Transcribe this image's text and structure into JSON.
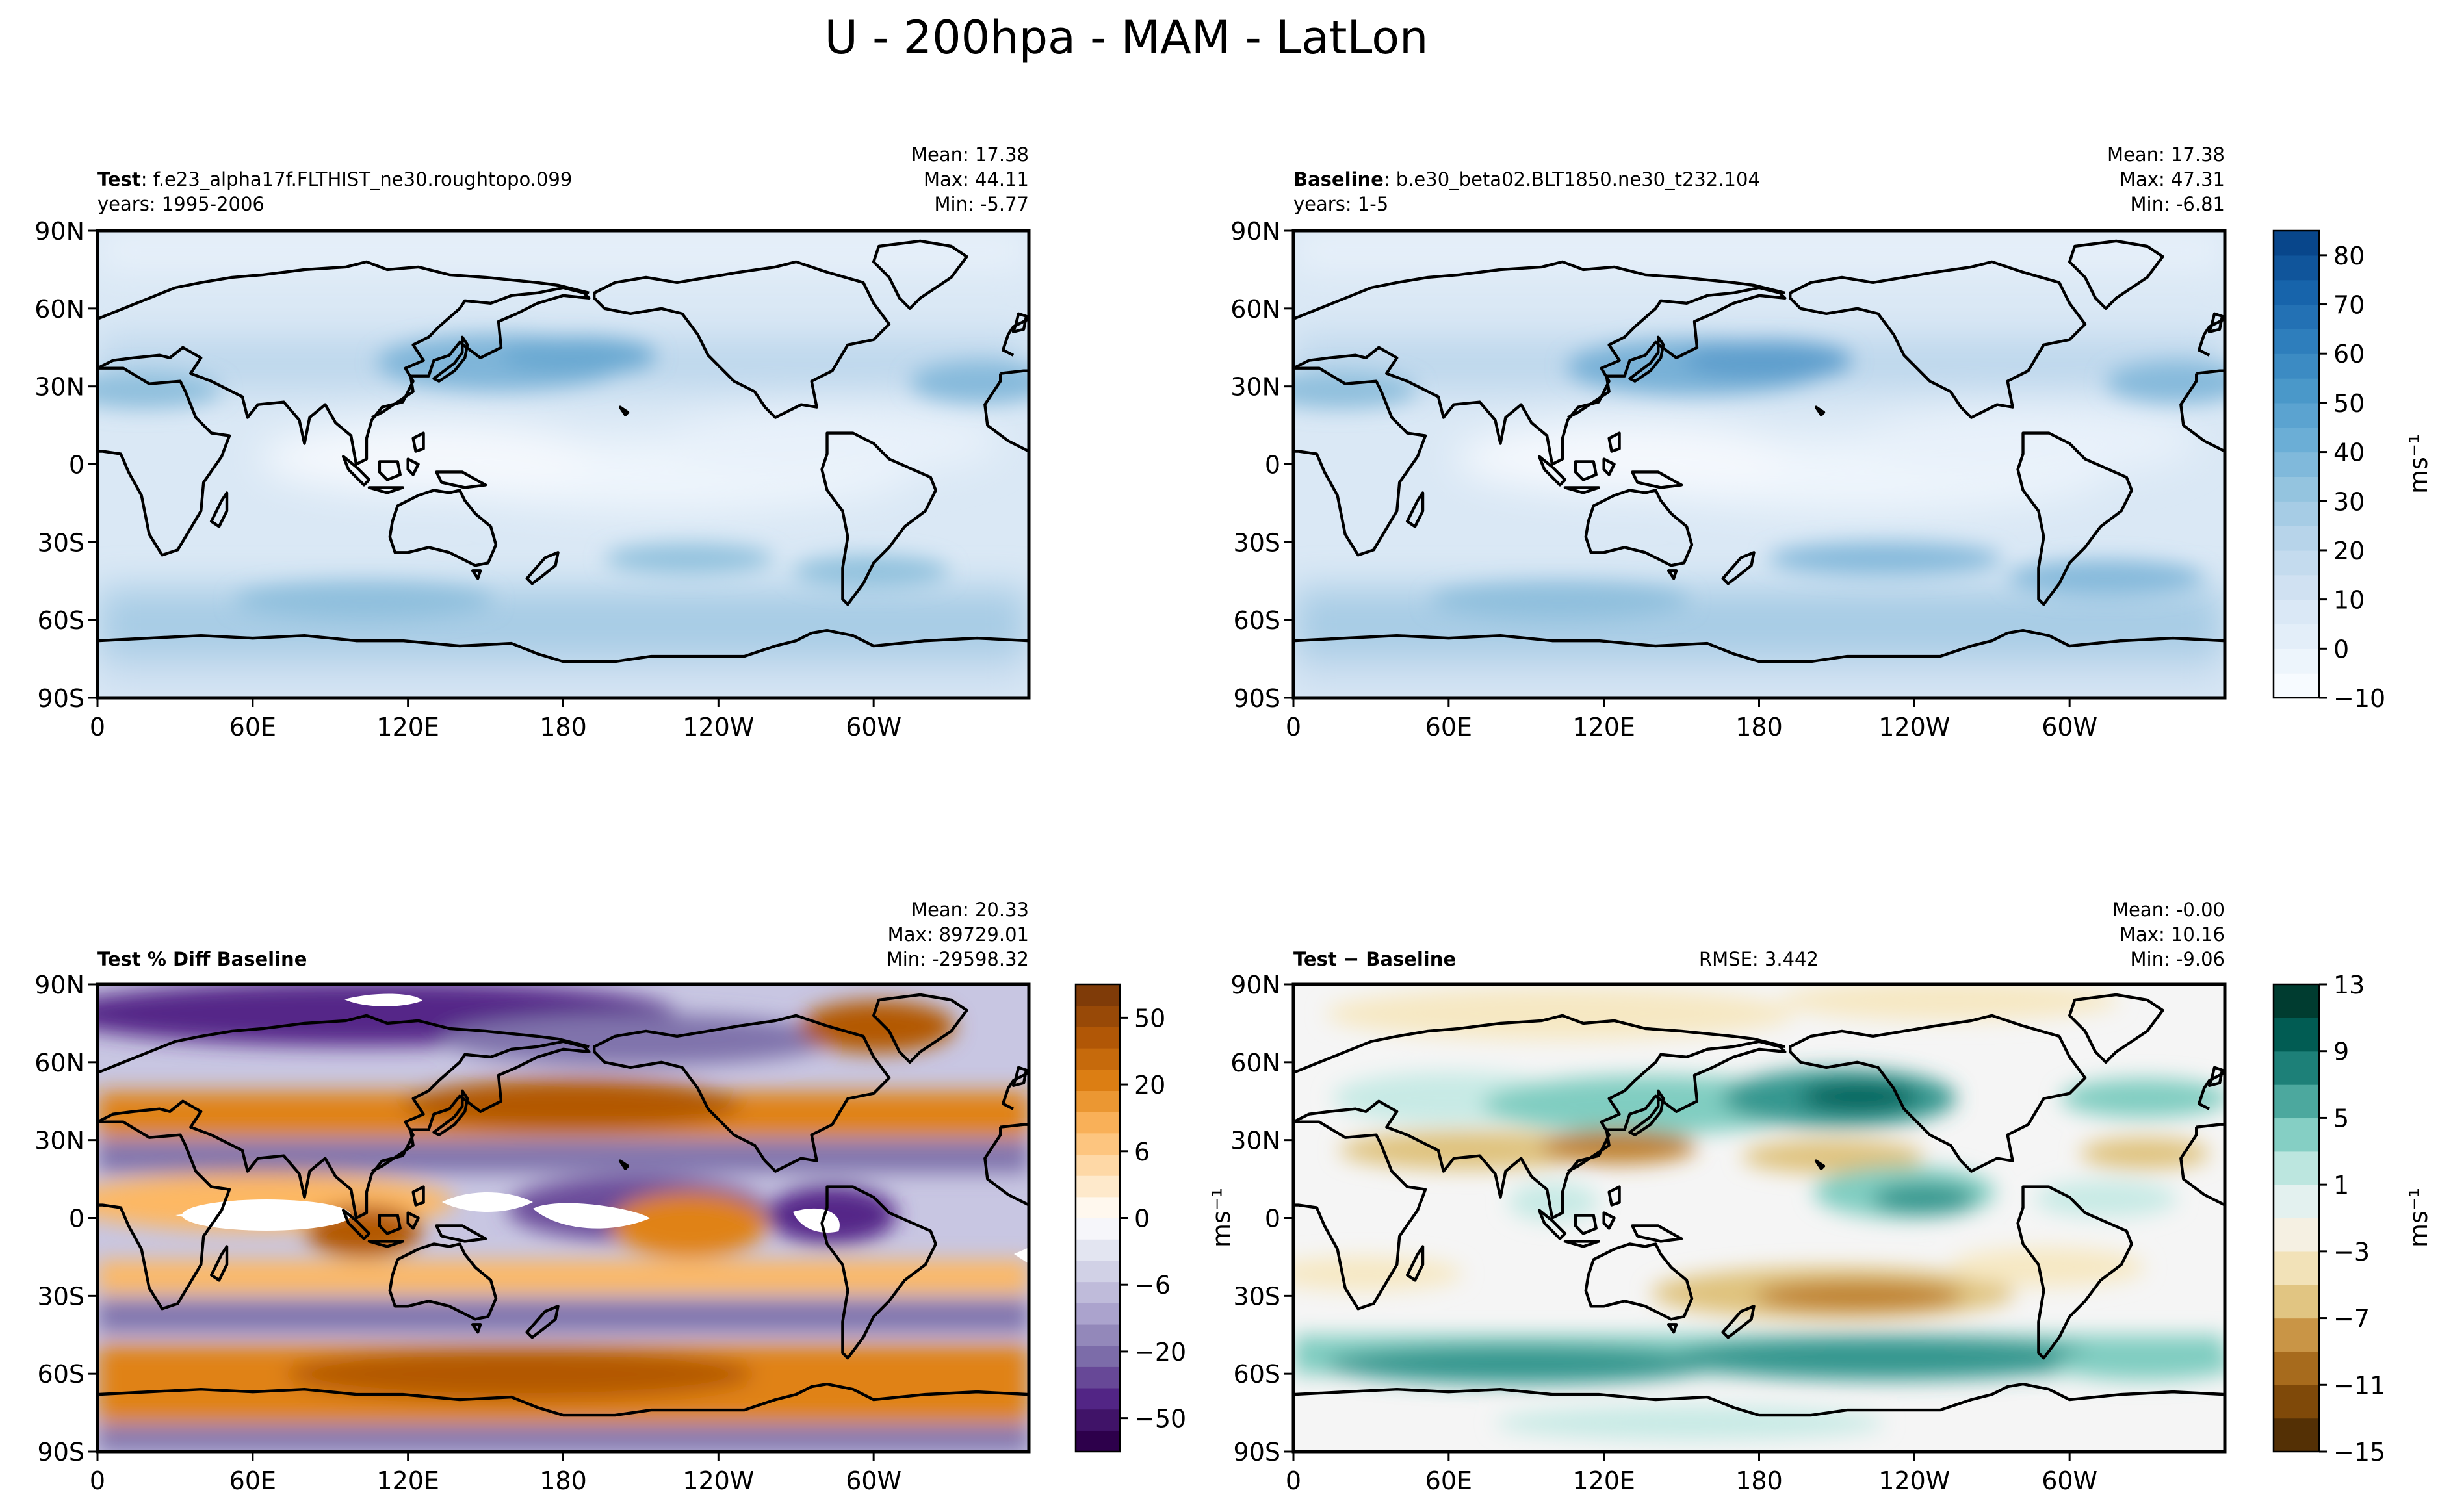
{
  "figure": {
    "title": "U - 200hpa - MAM - LatLon"
  },
  "colors": {
    "blues": [
      "#f7fbff",
      "#e3eef9",
      "#d0e1f2",
      "#b7d4ea",
      "#94c4df",
      "#6baed6",
      "#4a98c9",
      "#2e7ebc",
      "#1764ab",
      "#08468b"
    ],
    "purple_orange": [
      "#2d004b",
      "#542788",
      "#8073ac",
      "#b2abd2",
      "#d8daeb",
      "#ffffff",
      "#fee0b6",
      "#fdb863",
      "#e08214",
      "#b35806",
      "#7f3b08"
    ],
    "brbg": [
      "#543005",
      "#8c510a",
      "#bf812d",
      "#dfc27d",
      "#f6e8c3",
      "#f5f5f5",
      "#c7eae5",
      "#80cdc1",
      "#35978f",
      "#01665e",
      "#003c30"
    ]
  },
  "chart_data": [
    {
      "type": "heatmap",
      "panel": "test",
      "label_bold": "Test",
      "label_rest": ": f.e23_alpha17f.FLTHIST_ne30.roughtopo.099",
      "years": "years: 1995-2006",
      "stats": {
        "mean": "Mean: 17.38",
        "max": "Max: 44.11",
        "min": "Min: -5.77"
      },
      "x_ticks": [
        "0",
        "60E",
        "120E",
        "180",
        "120W",
        "60W"
      ],
      "y_ticks": [
        "90N",
        "60N",
        "30N",
        "0",
        "30S",
        "60S",
        "90S"
      ],
      "x_range": [
        0,
        360
      ],
      "y_range": [
        -90,
        90
      ],
      "variable": "U",
      "units": "ms⁻¹"
    },
    {
      "type": "heatmap",
      "panel": "baseline",
      "label_bold": "Baseline",
      "label_rest": ": b.e30_beta02.BLT1850.ne30_t232.104",
      "years": "years: 1-5",
      "stats": {
        "mean": "Mean: 17.38",
        "max": "Max: 47.31",
        "min": "Min: -6.81"
      },
      "x_ticks": [
        "0",
        "60E",
        "120E",
        "180",
        "120W",
        "60W"
      ],
      "y_ticks": [
        "90N",
        "60N",
        "30N",
        "0",
        "30S",
        "60S",
        "90S"
      ],
      "colorbar": {
        "ticks": [
          "80",
          "70",
          "60",
          "50",
          "40",
          "30",
          "20",
          "10",
          "0",
          "−10"
        ],
        "range": [
          -10,
          85
        ],
        "label": "ms⁻¹"
      }
    },
    {
      "type": "heatmap",
      "panel": "pct_diff",
      "label_bold": "Test % Diff Baseline",
      "stats": {
        "mean": "Mean: 20.33",
        "max": "Max: 89729.01",
        "min": "Min: -29598.32"
      },
      "x_ticks": [
        "0",
        "60E",
        "120E",
        "180",
        "120W",
        "60W"
      ],
      "y_ticks": [
        "90N",
        "60N",
        "30N",
        "0",
        "30S",
        "60S",
        "90S"
      ],
      "colorbar": {
        "ticks": [
          "50",
          "20",
          "6",
          "0",
          "−6",
          "−20",
          "−50"
        ],
        "label": "ms⁻¹"
      }
    },
    {
      "type": "heatmap",
      "panel": "diff",
      "label_bold": "Test − Baseline",
      "rmse": "RMSE: 3.442",
      "stats": {
        "mean": "Mean: -0.00",
        "max": "Max: 10.16",
        "min": "Min: -9.06"
      },
      "x_ticks": [
        "0",
        "60E",
        "120E",
        "180",
        "120W",
        "60W"
      ],
      "y_ticks": [
        "90N",
        "60N",
        "30N",
        "0",
        "30S",
        "60S",
        "90S"
      ],
      "colorbar": {
        "ticks": [
          "13",
          "9",
          "5",
          "1",
          "−3",
          "−7",
          "−11",
          "−15"
        ],
        "range": [
          -15,
          13
        ],
        "label": "ms⁻¹"
      }
    }
  ]
}
